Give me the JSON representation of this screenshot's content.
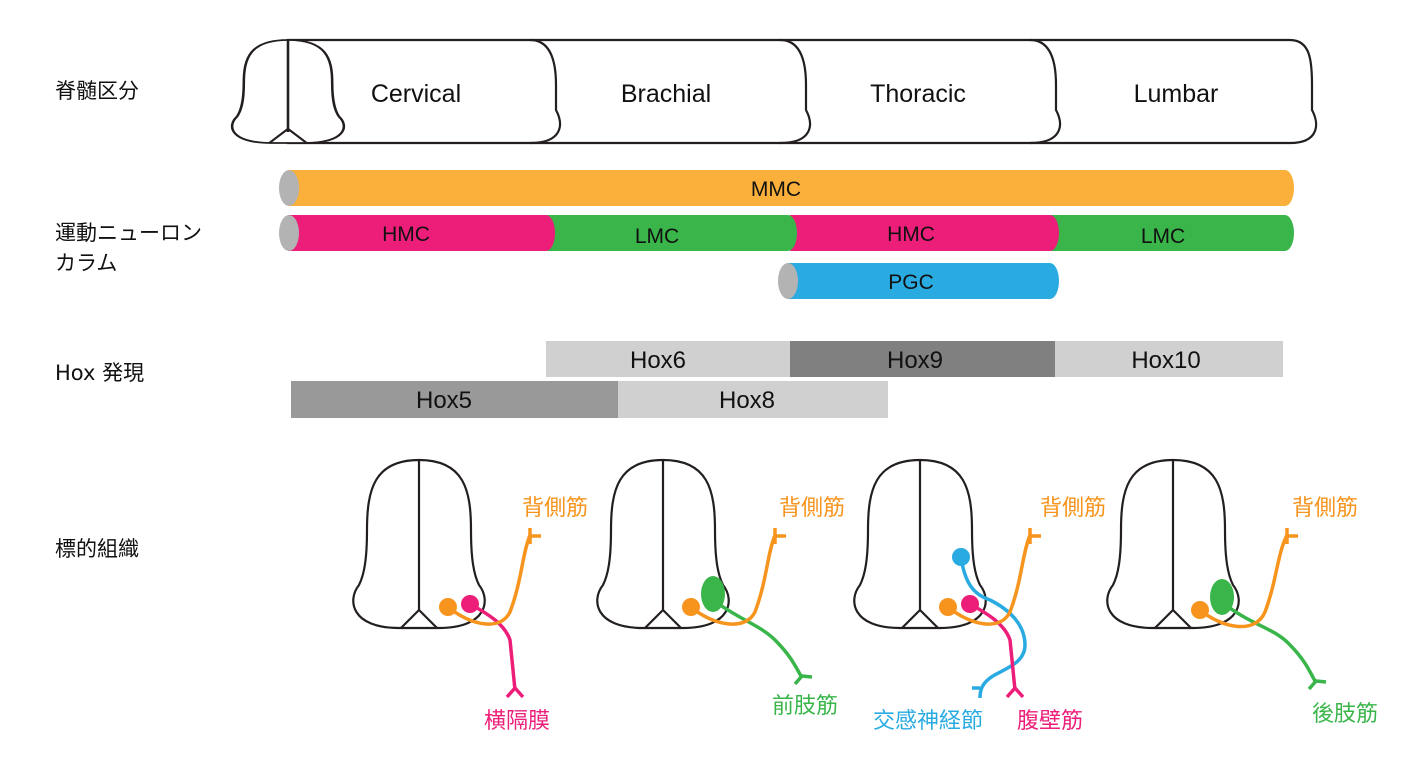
{
  "row_labels": {
    "segments": "脊髄区分",
    "columns_line1": "運動ニューロン",
    "columns_line2": "カラム",
    "hox": "Hox 発現",
    "targets": "標的組織"
  },
  "segments": [
    "Cervical",
    "Brachial",
    "Thoracic",
    "Lumbar"
  ],
  "columns": {
    "mmc": "MMC",
    "hmc_cervical": "HMC",
    "lmc_brachial": "LMC",
    "hmc_thoracic": "HMC",
    "lmc_lumbar": "LMC",
    "pgc": "PGC"
  },
  "hox": {
    "hox6": "Hox6",
    "hox9": "Hox9",
    "hox10": "Hox10",
    "hox5": "Hox5",
    "hox8": "Hox8"
  },
  "targets": {
    "dorsal": "背側筋",
    "diaphragm": "横隔膜",
    "forelimb": "前肢筋",
    "sympathetic": "交感神経節",
    "abdominal": "腹壁筋",
    "hindlimb": "後肢筋"
  },
  "colors": {
    "mmc": "#fbb03b",
    "hmc": "#ed1e79",
    "lmc": "#39b54a",
    "pgc": "#29abe2",
    "hox_light": "#d0d0d0",
    "hox_mid": "#999999",
    "hox_dark": "#808080",
    "dorsal_axon": "#f7941d"
  }
}
